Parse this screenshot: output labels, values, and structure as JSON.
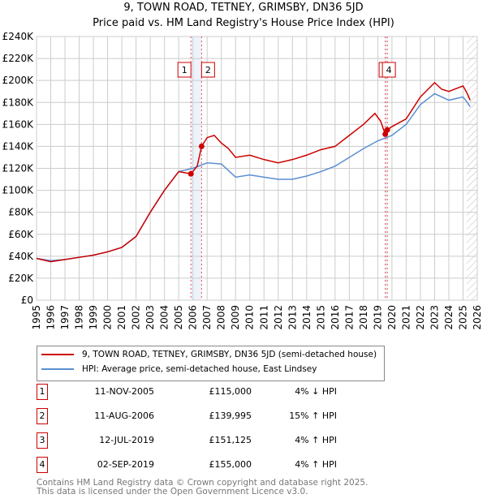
{
  "chart_data": {
    "type": "line",
    "title": "9, TOWN ROAD, TETNEY, GRIMSBY, DN36 5JD",
    "subtitle": "Price paid vs. HM Land Registry's House Price Index (HPI)",
    "xlim": [
      1995,
      2026
    ],
    "ylim": [
      0,
      240000
    ],
    "y_ticks": [
      "£0",
      "£20K",
      "£40K",
      "£60K",
      "£80K",
      "£100K",
      "£120K",
      "£140K",
      "£160K",
      "£180K",
      "£200K",
      "£220K",
      "£240K"
    ],
    "x_ticks": [
      "1995",
      "1996",
      "1997",
      "1998",
      "1999",
      "2000",
      "2001",
      "2002",
      "2003",
      "2004",
      "2005",
      "2006",
      "2007",
      "2008",
      "2009",
      "2010",
      "2011",
      "2012",
      "2013",
      "2014",
      "2015",
      "2016",
      "2017",
      "2018",
      "2019",
      "2020",
      "2021",
      "2022",
      "2023",
      "2024",
      "2025",
      "2026"
    ],
    "series": [
      {
        "name": "9, TOWN ROAD, TETNEY, GRIMSBY, DN36 5JD (semi-detached house)",
        "color": "#cc0000",
        "x": [
          1995,
          1996,
          1997,
          1998,
          1999,
          2000,
          2001,
          2002,
          2003,
          2004,
          2005,
          2005.86,
          2006.3,
          2006.61,
          2007,
          2007.5,
          2008,
          2008.5,
          2009,
          2010,
          2011,
          2012,
          2013,
          2014,
          2015,
          2016,
          2017,
          2018,
          2018.8,
          2019.2,
          2019.53,
          2019.67,
          2020,
          2021,
          2022,
          2023,
          2023.5,
          2024,
          2025,
          2025.3,
          2025.5
        ],
        "y": [
          38000,
          35000,
          37000,
          39000,
          41000,
          44000,
          48000,
          58000,
          80000,
          100000,
          117000,
          115000,
          122000,
          139995,
          148000,
          150000,
          143000,
          138000,
          130000,
          132000,
          128000,
          125000,
          128000,
          132000,
          137000,
          140000,
          150000,
          160000,
          170000,
          163000,
          151125,
          155000,
          158000,
          165000,
          185000,
          198000,
          192000,
          190000,
          195000,
          188000,
          182000
        ]
      },
      {
        "name": "HPI: Average price, semi-detached house, East Lindsey",
        "color": "#5b8fd1",
        "x": [
          1995,
          1996,
          1997,
          1998,
          1999,
          2000,
          2001,
          2002,
          2003,
          2004,
          2005,
          2006,
          2007,
          2008,
          2009,
          2010,
          2011,
          2012,
          2013,
          2014,
          2015,
          2016,
          2017,
          2018,
          2019,
          2020,
          2021,
          2022,
          2023,
          2024,
          2025,
          2025.3,
          2025.5
        ],
        "y": [
          38000,
          36000,
          37000,
          39000,
          41000,
          44000,
          48000,
          58000,
          80000,
          100000,
          117000,
          120000,
          125000,
          124000,
          112000,
          114000,
          112000,
          110000,
          110000,
          113000,
          117000,
          122000,
          130000,
          138000,
          145000,
          150000,
          160000,
          178000,
          188000,
          182000,
          185000,
          180000,
          176000
        ]
      }
    ],
    "markers": [
      {
        "label": "1",
        "x": 2005.86
      },
      {
        "label": "2",
        "x": 2006.61
      },
      {
        "label": "3",
        "x": 2019.53
      },
      {
        "label": "4",
        "x": 2019.67
      }
    ],
    "marker_box_labels": [
      "1",
      "2",
      "4"
    ],
    "legend": "below"
  },
  "transactions": [
    {
      "num": "1",
      "date": "11-NOV-2005",
      "price": "£115,000",
      "hpi": "4% ↓ HPI"
    },
    {
      "num": "2",
      "date": "11-AUG-2006",
      "price": "£139,995",
      "hpi": "15% ↑ HPI"
    },
    {
      "num": "3",
      "date": "12-JUL-2019",
      "price": "£151,125",
      "hpi": "4% ↑ HPI"
    },
    {
      "num": "4",
      "date": "02-SEP-2019",
      "price": "£155,000",
      "hpi": "4% ↑ HPI"
    }
  ],
  "footer": {
    "line1": "Contains HM Land Registry data © Crown copyright and database right 2025.",
    "line2": "This data is licensed under the Open Government Licence v3.0."
  }
}
